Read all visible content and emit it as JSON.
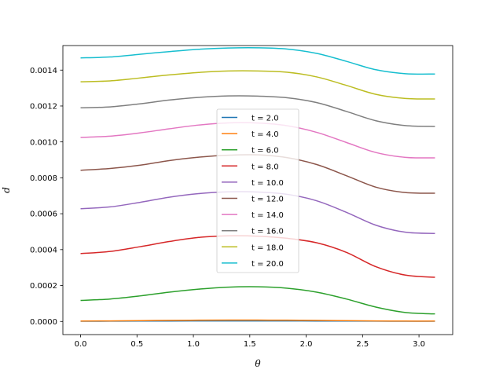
{
  "chart_data": {
    "type": "line",
    "title": "",
    "xlabel": "θ",
    "ylabel": "d",
    "xlim": [
      -0.157,
      3.299
    ],
    "ylim": [
      -7.32e-05,
      0.0015367
    ],
    "xticks": [
      0.0,
      0.5,
      1.0,
      1.5,
      2.0,
      2.5,
      3.0
    ],
    "xtick_labels": [
      "0.0",
      "0.5",
      "1.0",
      "1.5",
      "2.0",
      "2.5",
      "3.0"
    ],
    "yticks": [
      0.0,
      0.0002,
      0.0004,
      0.0006,
      0.0008,
      0.001,
      0.0012,
      0.0014
    ],
    "ytick_labels": [
      "0.0000",
      "0.0002",
      "0.0004",
      "0.0006",
      "0.0008",
      "0.0010",
      "0.0012",
      "0.0014"
    ],
    "grid": false,
    "legend_position": "center",
    "x": [
      0.0,
      0.262,
      0.524,
      0.785,
      1.047,
      1.309,
      1.571,
      1.833,
      2.094,
      2.356,
      2.618,
      2.88,
      3.142
    ],
    "series": [
      {
        "name": "t = 2.0",
        "color": "#1f77b4",
        "values": [
          1e-06,
          1.5e-06,
          2e-06,
          2.5e-06,
          3e-06,
          3e-06,
          3e-06,
          3e-06,
          2.5e-06,
          2e-06,
          1.5e-06,
          1e-06,
          1e-06
        ]
      },
      {
        "name": "t = 4.0",
        "color": "#ff7f0e",
        "values": [
          2e-06,
          3e-06,
          4.5e-06,
          6e-06,
          7e-06,
          7.5e-06,
          7.5e-06,
          7e-06,
          6e-06,
          4.5e-06,
          3e-06,
          2e-06,
          2e-06
        ]
      },
      {
        "name": "t = 6.0",
        "color": "#2ca02c",
        "values": [
          0.000117,
          0.000125,
          0.000142,
          0.000163,
          0.00018,
          0.000191,
          0.000193,
          0.000185,
          0.000163,
          0.000125,
          8e-05,
          5e-05,
          4.2e-05
        ]
      },
      {
        "name": "t = 8.0",
        "color": "#d62728",
        "values": [
          0.000378,
          0.00039,
          0.000416,
          0.000445,
          0.000468,
          0.000477,
          0.000475,
          0.000463,
          0.000438,
          0.000385,
          0.000305,
          0.000258,
          0.000246
        ]
      },
      {
        "name": "t = 10.0",
        "color": "#9467bd",
        "values": [
          0.000628,
          0.000638,
          0.000663,
          0.000692,
          0.000712,
          0.000722,
          0.000721,
          0.000708,
          0.000672,
          0.000608,
          0.000536,
          0.000497,
          0.00049
        ]
      },
      {
        "name": "t = 12.0",
        "color": "#8c564b",
        "values": [
          0.000842,
          0.000852,
          0.00087,
          0.000896,
          0.000915,
          0.000926,
          0.000928,
          0.000912,
          0.000874,
          0.000812,
          0.000748,
          0.000718,
          0.000714
        ]
      },
      {
        "name": "t = 14.0",
        "color": "#e377c2",
        "values": [
          0.001025,
          0.001032,
          0.00105,
          0.001073,
          0.001094,
          0.001106,
          0.001105,
          0.00109,
          0.001053,
          0.000997,
          0.000941,
          0.000914,
          0.000911
        ]
      },
      {
        "name": "t = 16.0",
        "color": "#7f7f7f",
        "values": [
          0.00119,
          0.001195,
          0.001212,
          0.001233,
          0.001248,
          0.001256,
          0.001255,
          0.001246,
          0.001219,
          0.00117,
          0.001118,
          0.001091,
          0.001086
        ]
      },
      {
        "name": "t = 18.0",
        "color": "#bcbd22",
        "values": [
          0.001335,
          0.00134,
          0.001356,
          0.001373,
          0.001387,
          0.001395,
          0.001395,
          0.001388,
          0.001362,
          0.001315,
          0.001265,
          0.001242,
          0.001239
        ]
      },
      {
        "name": "t = 20.0",
        "color": "#17becf",
        "values": [
          0.001468,
          0.001473,
          0.001488,
          0.001503,
          0.001516,
          0.001523,
          0.001524,
          0.001517,
          0.001493,
          0.001449,
          0.001402,
          0.00138,
          0.001378
        ]
      }
    ]
  }
}
